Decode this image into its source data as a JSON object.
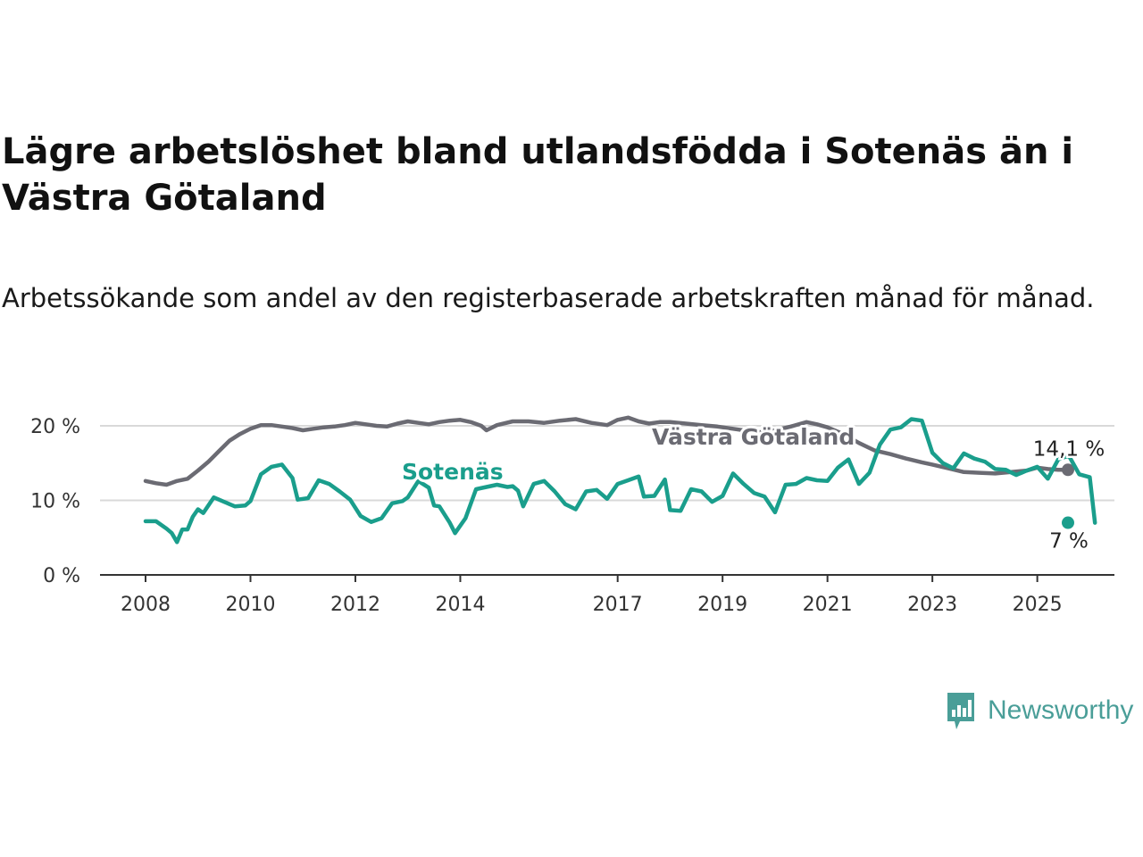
{
  "title": "Lägre arbetslöshet bland utlandsfödda i Sotenäs än i Västra Götaland",
  "subtitle": "Arbetssökande som andel av den registerbaserade arbetskraften månad för månad.",
  "brand": {
    "name": "Newsworthy",
    "logo_icon": "bar-chart-speech-bubble-icon",
    "color": "#4a9e98"
  },
  "chart_data": {
    "type": "line",
    "title": "Lägre arbetslöshet bland utlandsfödda i Sotenäs än i Västra Götaland",
    "subtitle": "Arbetssökande som andel av den registerbaserade arbetskraften månad för månad.",
    "xlabel": "",
    "ylabel": "",
    "x_range": [
      2007.8,
      2026.3
    ],
    "ylim": [
      0,
      22
    ],
    "y_ticks": [
      0,
      10,
      20
    ],
    "y_tick_labels": [
      "0 %",
      "10 %",
      "20 %"
    ],
    "x_ticks": [
      2008,
      2010,
      2012,
      2014,
      2017,
      2019,
      2021,
      2023,
      2025
    ],
    "x_tick_labels": [
      "2008",
      "2010",
      "2012",
      "2014",
      "2017",
      "2019",
      "2021",
      "2023",
      "2025"
    ],
    "grid": "horizontal",
    "series": [
      {
        "name": "Västra Götaland",
        "color": "#6b6b73",
        "end_label": "14,1 %",
        "points": [
          [
            2008.0,
            12.6
          ],
          [
            2008.2,
            12.3
          ],
          [
            2008.4,
            12.1
          ],
          [
            2008.6,
            12.6
          ],
          [
            2008.8,
            12.9
          ],
          [
            2009.0,
            14.0
          ],
          [
            2009.2,
            15.2
          ],
          [
            2009.4,
            16.6
          ],
          [
            2009.6,
            18.0
          ],
          [
            2009.8,
            18.9
          ],
          [
            2010.0,
            19.6
          ],
          [
            2010.2,
            20.1
          ],
          [
            2010.4,
            20.1
          ],
          [
            2010.6,
            19.9
          ],
          [
            2010.8,
            19.7
          ],
          [
            2011.0,
            19.4
          ],
          [
            2011.2,
            19.6
          ],
          [
            2011.4,
            19.8
          ],
          [
            2011.6,
            19.9
          ],
          [
            2011.8,
            20.1
          ],
          [
            2012.0,
            20.4
          ],
          [
            2012.2,
            20.2
          ],
          [
            2012.4,
            20.0
          ],
          [
            2012.6,
            19.9
          ],
          [
            2012.8,
            20.3
          ],
          [
            2013.0,
            20.6
          ],
          [
            2013.2,
            20.4
          ],
          [
            2013.4,
            20.2
          ],
          [
            2013.6,
            20.5
          ],
          [
            2013.8,
            20.7
          ],
          [
            2014.0,
            20.8
          ],
          [
            2014.2,
            20.5
          ],
          [
            2014.4,
            20.0
          ],
          [
            2014.5,
            19.4
          ],
          [
            2014.7,
            20.1
          ],
          [
            2015.0,
            20.6
          ],
          [
            2015.3,
            20.6
          ],
          [
            2015.6,
            20.4
          ],
          [
            2015.9,
            20.7
          ],
          [
            2016.2,
            20.9
          ],
          [
            2016.5,
            20.4
          ],
          [
            2016.8,
            20.1
          ],
          [
            2017.0,
            20.8
          ],
          [
            2017.2,
            21.1
          ],
          [
            2017.4,
            20.6
          ],
          [
            2017.6,
            20.3
          ],
          [
            2017.8,
            20.5
          ],
          [
            2018.0,
            20.5
          ],
          [
            2018.3,
            20.3
          ],
          [
            2018.6,
            20.1
          ],
          [
            2018.9,
            19.9
          ],
          [
            2019.2,
            19.6
          ],
          [
            2019.5,
            19.3
          ],
          [
            2019.8,
            19.1
          ],
          [
            2020.0,
            19.4
          ],
          [
            2020.3,
            19.9
          ],
          [
            2020.6,
            20.5
          ],
          [
            2020.8,
            20.2
          ],
          [
            2021.0,
            19.8
          ],
          [
            2021.3,
            18.9
          ],
          [
            2021.6,
            17.7
          ],
          [
            2021.9,
            16.7
          ],
          [
            2022.2,
            16.2
          ],
          [
            2022.5,
            15.6
          ],
          [
            2022.8,
            15.1
          ],
          [
            2023.0,
            14.8
          ],
          [
            2023.3,
            14.3
          ],
          [
            2023.6,
            13.8
          ],
          [
            2023.9,
            13.7
          ],
          [
            2024.2,
            13.6
          ],
          [
            2024.5,
            13.8
          ],
          [
            2024.8,
            14.0
          ],
          [
            2025.0,
            14.4
          ],
          [
            2025.2,
            14.2
          ],
          [
            2025.4,
            14.1
          ],
          [
            2025.6,
            14.1
          ]
        ]
      },
      {
        "name": "Sotenäs",
        "color": "#1a9e8c",
        "end_label": "7 %",
        "points": [
          [
            2008.0,
            7.2
          ],
          [
            2008.2,
            7.2
          ],
          [
            2008.4,
            6.2
          ],
          [
            2008.5,
            5.6
          ],
          [
            2008.6,
            4.4
          ],
          [
            2008.7,
            6.1
          ],
          [
            2008.8,
            6.1
          ],
          [
            2008.9,
            7.8
          ],
          [
            2009.0,
            8.8
          ],
          [
            2009.1,
            8.3
          ],
          [
            2009.3,
            10.4
          ],
          [
            2009.5,
            9.8
          ],
          [
            2009.7,
            9.2
          ],
          [
            2009.9,
            9.3
          ],
          [
            2010.0,
            9.9
          ],
          [
            2010.2,
            13.5
          ],
          [
            2010.4,
            14.5
          ],
          [
            2010.6,
            14.8
          ],
          [
            2010.8,
            13.0
          ],
          [
            2010.9,
            10.1
          ],
          [
            2011.1,
            10.3
          ],
          [
            2011.3,
            12.7
          ],
          [
            2011.5,
            12.2
          ],
          [
            2011.7,
            11.2
          ],
          [
            2011.9,
            10.1
          ],
          [
            2012.1,
            7.9
          ],
          [
            2012.3,
            7.1
          ],
          [
            2012.5,
            7.6
          ],
          [
            2012.7,
            9.6
          ],
          [
            2012.9,
            9.9
          ],
          [
            2013.0,
            10.4
          ],
          [
            2013.2,
            12.6
          ],
          [
            2013.4,
            11.7
          ],
          [
            2013.5,
            9.3
          ],
          [
            2013.6,
            9.2
          ],
          [
            2013.8,
            7.0
          ],
          [
            2013.9,
            5.6
          ],
          [
            2014.1,
            7.6
          ],
          [
            2014.3,
            11.5
          ],
          [
            2014.5,
            11.8
          ],
          [
            2014.7,
            12.1
          ],
          [
            2014.9,
            11.8
          ],
          [
            2015.0,
            11.9
          ],
          [
            2015.1,
            11.3
          ],
          [
            2015.2,
            9.2
          ],
          [
            2015.4,
            12.2
          ],
          [
            2015.6,
            12.6
          ],
          [
            2015.8,
            11.2
          ],
          [
            2016.0,
            9.5
          ],
          [
            2016.2,
            8.8
          ],
          [
            2016.4,
            11.2
          ],
          [
            2016.6,
            11.4
          ],
          [
            2016.8,
            10.2
          ],
          [
            2017.0,
            12.2
          ],
          [
            2017.2,
            12.7
          ],
          [
            2017.4,
            13.2
          ],
          [
            2017.5,
            10.5
          ],
          [
            2017.7,
            10.6
          ],
          [
            2017.9,
            12.8
          ],
          [
            2018.0,
            8.7
          ],
          [
            2018.2,
            8.6
          ],
          [
            2018.4,
            11.5
          ],
          [
            2018.6,
            11.2
          ],
          [
            2018.8,
            9.8
          ],
          [
            2019.0,
            10.6
          ],
          [
            2019.2,
            13.6
          ],
          [
            2019.4,
            12.2
          ],
          [
            2019.6,
            11.0
          ],
          [
            2019.8,
            10.5
          ],
          [
            2020.0,
            8.4
          ],
          [
            2020.2,
            12.1
          ],
          [
            2020.4,
            12.2
          ],
          [
            2020.6,
            13.0
          ],
          [
            2020.8,
            12.7
          ],
          [
            2021.0,
            12.6
          ],
          [
            2021.2,
            14.4
          ],
          [
            2021.4,
            15.5
          ],
          [
            2021.6,
            12.2
          ],
          [
            2021.8,
            13.7
          ],
          [
            2022.0,
            17.5
          ],
          [
            2022.2,
            19.5
          ],
          [
            2022.4,
            19.8
          ],
          [
            2022.6,
            20.9
          ],
          [
            2022.8,
            20.7
          ],
          [
            2023.0,
            16.4
          ],
          [
            2023.2,
            15.0
          ],
          [
            2023.4,
            14.3
          ],
          [
            2023.6,
            16.3
          ],
          [
            2023.8,
            15.6
          ],
          [
            2024.0,
            15.2
          ],
          [
            2024.2,
            14.2
          ],
          [
            2024.4,
            14.1
          ],
          [
            2024.6,
            13.4
          ],
          [
            2024.8,
            14.0
          ],
          [
            2025.0,
            14.5
          ],
          [
            2025.2,
            12.9
          ],
          [
            2025.4,
            15.5
          ],
          [
            2025.6,
            16.0
          ],
          [
            2025.8,
            13.5
          ],
          [
            2026.0,
            13.1
          ],
          [
            2026.1,
            7.0
          ]
        ]
      }
    ]
  }
}
